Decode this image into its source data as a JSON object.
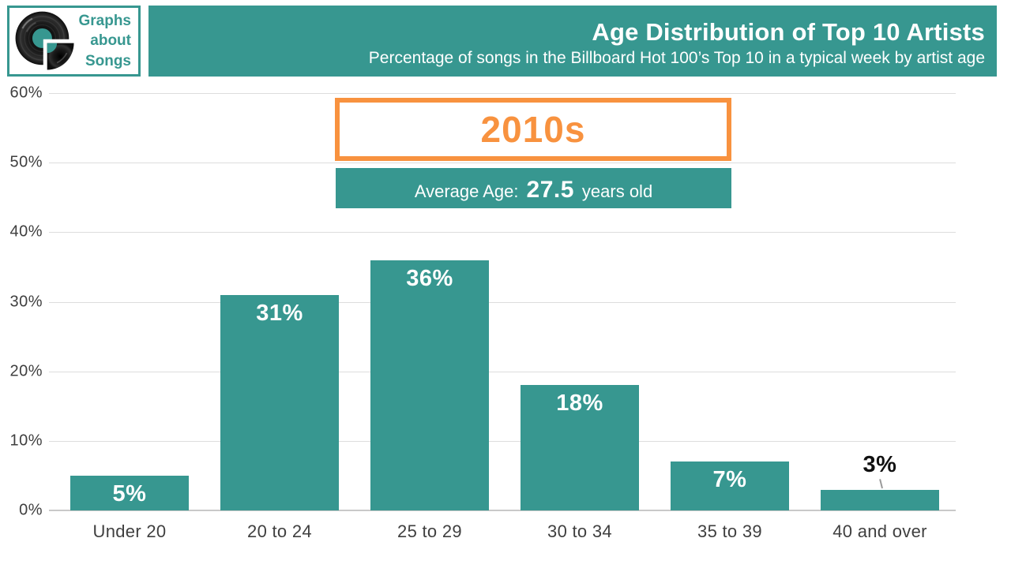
{
  "brand": {
    "icon": "vinyl-record-icon",
    "lines": [
      "Graphs",
      "about",
      "Songs"
    ]
  },
  "header": {
    "title": "Age Distribution of Top 10 Artists",
    "subtitle": "Percentage of songs in the Billboard Hot 100’s Top 10 in a typical week by artist age"
  },
  "decade_box": {
    "label": "2010s"
  },
  "average_box": {
    "prefix": "Average Age:",
    "value": "27.5",
    "suffix": "years old"
  },
  "colors": {
    "teal": "#379790",
    "orange": "#F8923F",
    "gridline": "#DDDDDD",
    "axis_line": "#C9C9C9",
    "axis_text": "#3F3F3F",
    "value_label_inside": "#FFFFFF",
    "value_label_outside": "#111111"
  },
  "chart_data": {
    "type": "bar",
    "title": "Age Distribution of Top 10 Artists",
    "subtitle": "Percentage of songs in the Billboard Hot 100’s Top 10 in a typical week by artist age",
    "categories": [
      "Under 20",
      "20 to 24",
      "25 to 29",
      "30 to 34",
      "35 to 39",
      "40 and over"
    ],
    "values": [
      5,
      31,
      36,
      18,
      7,
      3
    ],
    "value_labels": [
      "5%",
      "31%",
      "36%",
      "18%",
      "7%",
      "3%"
    ],
    "xlabel": "",
    "ylabel": "",
    "ylim": [
      0,
      60
    ],
    "yticks": [
      0,
      10,
      20,
      30,
      40,
      50,
      60
    ],
    "ytick_labels": [
      "0%",
      "10%",
      "20%",
      "30%",
      "40%",
      "50%",
      "60%"
    ],
    "grid": true,
    "legend": false,
    "bar_color": "#379790",
    "annotations": {
      "decade": "2010s",
      "average_age": "Average Age: 27.5 years old"
    }
  }
}
